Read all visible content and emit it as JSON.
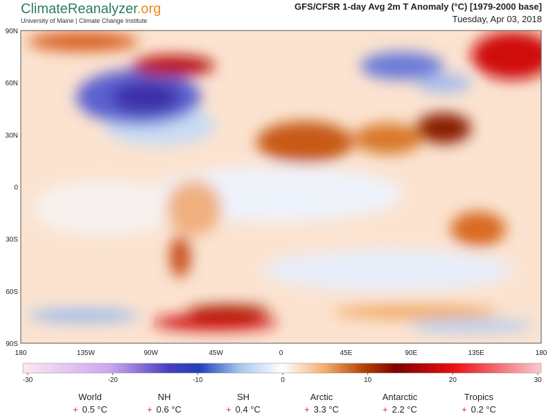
{
  "header": {
    "logo_main": "ClimateReanalyzer",
    "logo_suffix": ".org",
    "institution": "University of Maine | Climate Change Institute",
    "title": "GFS/CFSR 1-day Avg 2m T Anomaly (°C) [1979-2000 base]",
    "date": "Tuesday, Apr 03, 2018"
  },
  "map": {
    "lat_labels": [
      "90N",
      "60N",
      "30N",
      "0",
      "30S",
      "60S",
      "90S"
    ],
    "lon_labels": [
      "180",
      "135W",
      "90W",
      "45W",
      "0",
      "45E",
      "90E",
      "135E",
      "180"
    ]
  },
  "colorbar": {
    "ticks": [
      -30,
      -20,
      -10,
      0,
      10,
      20,
      30
    ]
  },
  "stats": [
    {
      "name": "World",
      "sign": "+",
      "value": "0.5 °C"
    },
    {
      "name": "NH",
      "sign": "+",
      "value": "0.6 °C"
    },
    {
      "name": "SH",
      "sign": "+",
      "value": "0.4 °C"
    },
    {
      "name": "Arctic",
      "sign": "+",
      "value": "3.3 °C"
    },
    {
      "name": "Antarctic",
      "sign": "+",
      "value": "2.2 °C"
    },
    {
      "name": "Tropics",
      "sign": "+",
      "value": "0.2 °C"
    }
  ]
}
